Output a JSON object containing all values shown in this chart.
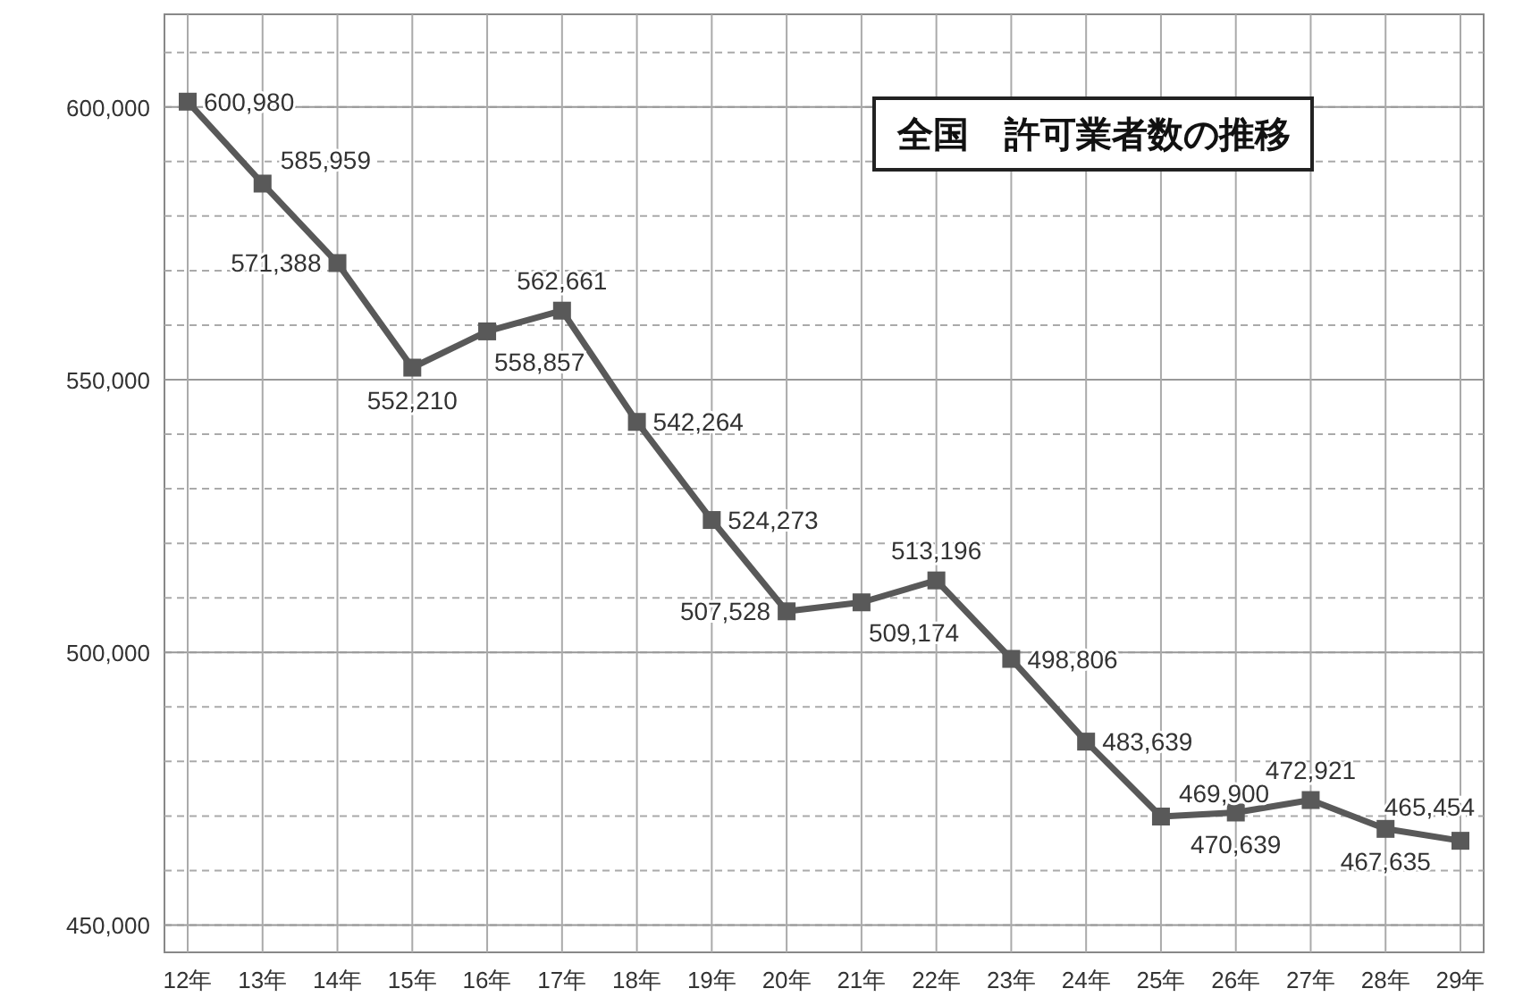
{
  "chart_data": {
    "type": "line",
    "title": "全国　許可業者数の推移",
    "categories": [
      "12年",
      "13年",
      "14年",
      "15年",
      "16年",
      "17年",
      "18年",
      "19年",
      "20年",
      "21年",
      "22年",
      "23年",
      "24年",
      "25年",
      "26年",
      "27年",
      "28年",
      "29年"
    ],
    "series": [
      {
        "color": "#595959",
        "values": [
          600980,
          585959,
          571388,
          552210,
          558857,
          562661,
          542264,
          524273,
          507528,
          509174,
          513196,
          498806,
          483639,
          469900,
          470639,
          472921,
          467635,
          465454
        ],
        "value_labels": [
          "600,980",
          "585,959",
          "571,388",
          "552,210",
          "558,857",
          "562,661",
          "542,264",
          "524,273",
          "507,528",
          "509,174",
          "513,196",
          "498,806",
          "483,639",
          "469,900",
          "470,639",
          "472,921",
          "467,635",
          "465,454"
        ]
      }
    ],
    "ylim": [
      445000,
      617000
    ],
    "yticks": [
      {
        "value": 450000,
        "label": "450,000"
      },
      {
        "value": 500000,
        "label": "500,000"
      },
      {
        "value": 550000,
        "label": "550,000"
      },
      {
        "value": 600000,
        "label": "600,000"
      }
    ],
    "grid": true,
    "marker": "square",
    "line_style": "solid"
  }
}
